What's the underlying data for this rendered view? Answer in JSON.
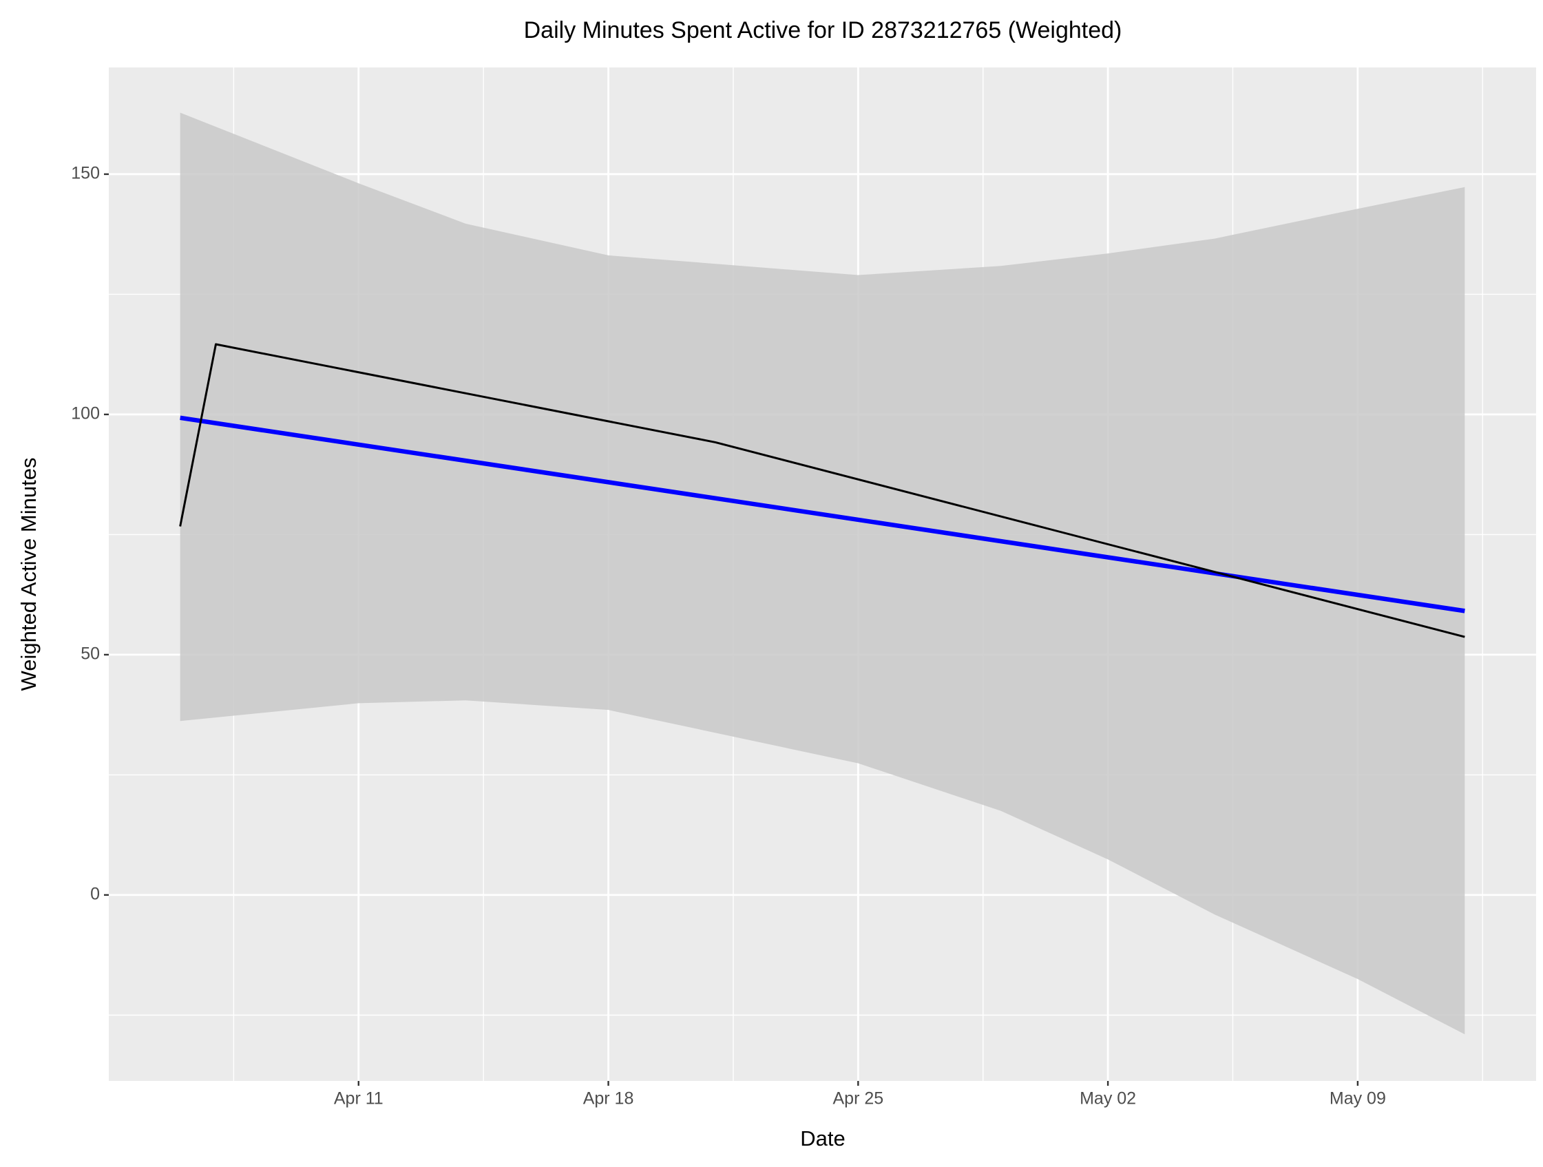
{
  "chart_data": {
    "type": "line",
    "title": "Daily Minutes Spent Active for ID 2873212765 (Weighted)",
    "x_label": "Date",
    "y_label": "Weighted Active Minutes",
    "x": [
      "Apr 06",
      "Apr 07",
      "Apr 21",
      "May 12"
    ],
    "series": [
      {
        "color": "#000000",
        "values": [
          76.7,
          114.6,
          94.2,
          53.7
        ]
      }
    ],
    "fit": {
      "color": "#0000ff",
      "x": [
        "Apr 06",
        "May 12"
      ],
      "values": [
        99.3,
        59.1
      ]
    },
    "band": {
      "color": "#c9c9c9",
      "x": [
        "Apr 06",
        "Apr 11",
        "Apr 14",
        "Apr 18",
        "Apr 25",
        "Apr 29",
        "May 02",
        "May 05",
        "May 09",
        "May 12"
      ],
      "upper": [
        162.8,
        148.1,
        139.7,
        133.1,
        129.0,
        130.9,
        133.5,
        136.6,
        142.8,
        147.3
      ],
      "lower": [
        36.2,
        39.9,
        40.5,
        38.5,
        27.4,
        17.5,
        7.4,
        -4.1,
        -17.5,
        -29.0
      ]
    },
    "xlim": [
      "Apr 04",
      "May 14"
    ],
    "xticks": [
      "Apr 11",
      "Apr 18",
      "Apr 25",
      "May 02",
      "May 09"
    ],
    "ylim": [
      -38.7,
      172.2
    ],
    "yticks": [
      0,
      50,
      100,
      150
    ],
    "grid": true
  }
}
